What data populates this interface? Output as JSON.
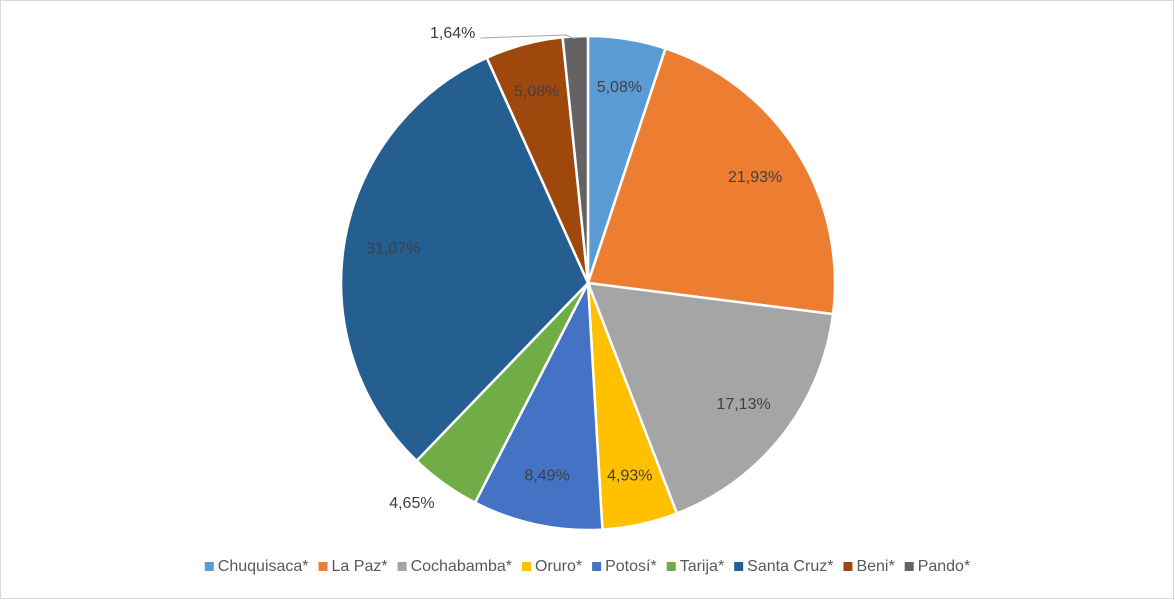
{
  "chart_data": {
    "type": "pie",
    "categories": [
      "Chuquisaca*",
      "La Paz*",
      "Cochabamba*",
      "Oruro*",
      "Potosí*",
      "Tarija*",
      "Santa Cruz*",
      "Beni*",
      "Pando*"
    ],
    "series": [
      {
        "values": [
          5.08,
          21.93,
          17.13,
          4.93,
          8.49,
          4.65,
          31.07,
          5.08,
          1.64
        ],
        "value_labels": [
          "5,08%",
          "21,93%",
          "17,13%",
          "4,93%",
          "8,49%",
          "4,65%",
          "31,07%",
          "5,08%",
          "1,64%"
        ],
        "colors": [
          "#5b9bd5",
          "#ed7d31",
          "#a5a5a5",
          "#ffc000",
          "#4472c4",
          "#70ad47",
          "#255e91",
          "#9e480e",
          "#636363"
        ]
      }
    ],
    "legend": "bottom"
  }
}
